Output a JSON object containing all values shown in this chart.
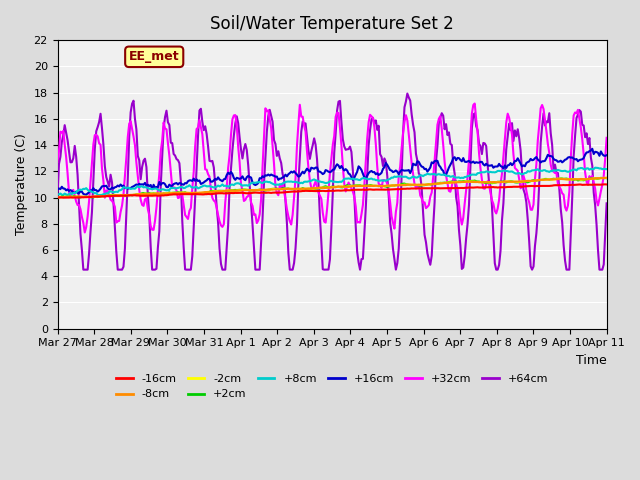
{
  "title": "Soil/Water Temperature Set 2",
  "xlabel": "Time",
  "ylabel": "Temperature (C)",
  "ylim": [
    0,
    22
  ],
  "yticks": [
    0,
    2,
    4,
    6,
    8,
    10,
    12,
    14,
    16,
    18,
    20,
    22
  ],
  "x_labels": [
    "Mar 27",
    "Mar 28",
    "Mar 29",
    "Mar 30",
    "Mar 31",
    "Apr 1",
    "Apr 2",
    "Apr 3",
    "Apr 4",
    "Apr 5",
    "Apr 6",
    "Apr 7",
    "Apr 8",
    "Apr 9",
    "Apr 10",
    "Apr 11"
  ],
  "watermark_text": "EE_met",
  "watermark_bg": "#FFFF99",
  "watermark_border": "#8B0000",
  "bg_color": "#E8E8E8",
  "plot_bg": "#F0F0F0",
  "series": {
    "-16cm": {
      "color": "#FF0000",
      "lw": 1.5
    },
    "-8cm": {
      "color": "#FF8C00",
      "lw": 1.5
    },
    "-2cm": {
      "color": "#FFFF00",
      "lw": 1.5
    },
    "+2cm": {
      "color": "#00CC00",
      "lw": 1.5
    },
    "+8cm": {
      "color": "#00CCCC",
      "lw": 1.5
    },
    "+16cm": {
      "color": "#0000CC",
      "lw": 1.5
    },
    "+32cm": {
      "color": "#FF00FF",
      "lw": 1.5
    },
    "+64cm": {
      "color": "#9900CC",
      "lw": 1.5
    }
  },
  "n_points": 337
}
